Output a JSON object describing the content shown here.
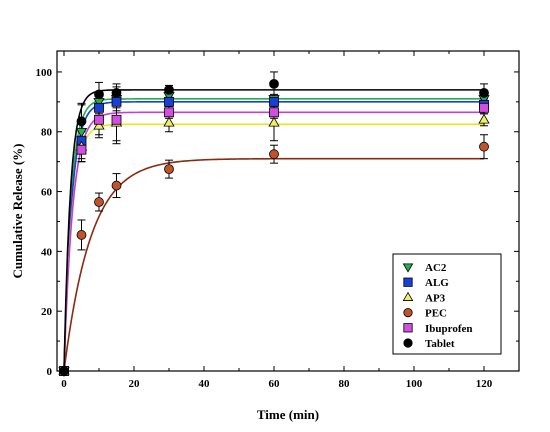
{
  "chart_data": {
    "type": "scatter",
    "xlabel": "Time (min)",
    "ylabel": "Cumulative Release (%)",
    "xlim": [
      -2,
      130
    ],
    "ylim": [
      0,
      107
    ],
    "xticks": [
      0,
      20,
      40,
      60,
      80,
      100,
      120
    ],
    "yticks": [
      0,
      20,
      40,
      60,
      80,
      100
    ],
    "grid": false,
    "legend_position": "bottom-right",
    "fitted_curves": true,
    "series": [
      {
        "name": "AC2",
        "marker": "triangle-down",
        "color": "#22b04c",
        "line_color": "#22b04c",
        "plateau": 91,
        "rate": 0.5,
        "points": [
          {
            "x": 0,
            "y": 0,
            "err": 0
          },
          {
            "x": 5,
            "y": 80,
            "err": 9
          },
          {
            "x": 10,
            "y": 90,
            "err": 3
          },
          {
            "x": 15,
            "y": 91,
            "err": 4
          },
          {
            "x": 30,
            "y": 92,
            "err": 1.5
          },
          {
            "x": 60,
            "y": 91,
            "err": 1.5
          },
          {
            "x": 120,
            "y": 91,
            "err": 1.5
          }
        ]
      },
      {
        "name": "ALG",
        "marker": "square",
        "color": "#1a3fd6",
        "line_color": "#1a3fd6",
        "plateau": 90,
        "rate": 0.45,
        "points": [
          {
            "x": 0,
            "y": 0,
            "err": 0
          },
          {
            "x": 5,
            "y": 77,
            "err": 7
          },
          {
            "x": 10,
            "y": 88,
            "err": 3
          },
          {
            "x": 15,
            "y": 90,
            "err": 2
          },
          {
            "x": 30,
            "y": 90,
            "err": 1.5
          },
          {
            "x": 60,
            "y": 90,
            "err": 2
          },
          {
            "x": 120,
            "y": 89,
            "err": 2
          }
        ]
      },
      {
        "name": "AP3",
        "marker": "triangle-up",
        "color": "#f0f060",
        "line_color": "#e6e620",
        "plateau": 82.5,
        "rate": 0.45,
        "points": [
          {
            "x": 0,
            "y": 0,
            "err": 0
          },
          {
            "x": 5,
            "y": 75,
            "err": 5
          },
          {
            "x": 10,
            "y": 82,
            "err": 4
          },
          {
            "x": 15,
            "y": 83,
            "err": 6
          },
          {
            "x": 30,
            "y": 83,
            "err": 3
          },
          {
            "x": 60,
            "y": 83,
            "err": 6
          },
          {
            "x": 120,
            "y": 84,
            "err": 2
          }
        ]
      },
      {
        "name": "PEC",
        "marker": "circle",
        "color": "#c0532a",
        "line_color": "#8b2a10",
        "plateau": 71,
        "rate": 0.13,
        "points": [
          {
            "x": 0,
            "y": 0,
            "err": 0
          },
          {
            "x": 5,
            "y": 45.5,
            "err": 5
          },
          {
            "x": 10,
            "y": 56.5,
            "err": 3
          },
          {
            "x": 15,
            "y": 62,
            "err": 4
          },
          {
            "x": 30,
            "y": 67.5,
            "err": 3
          },
          {
            "x": 60,
            "y": 72.5,
            "err": 3
          },
          {
            "x": 120,
            "y": 75,
            "err": 4
          }
        ]
      },
      {
        "name": "Ibuprofen",
        "marker": "square",
        "color": "#d14fe0",
        "line_color": "#c040d0",
        "plateau": 86.5,
        "rate": 0.4,
        "points": [
          {
            "x": 0,
            "y": 0,
            "err": 0
          },
          {
            "x": 5,
            "y": 74,
            "err": 4
          },
          {
            "x": 10,
            "y": 84,
            "err": 5
          },
          {
            "x": 15,
            "y": 84,
            "err": 8
          },
          {
            "x": 30,
            "y": 86.5,
            "err": 2
          },
          {
            "x": 60,
            "y": 86.5,
            "err": 2
          },
          {
            "x": 120,
            "y": 88,
            "err": 2
          }
        ]
      },
      {
        "name": "Tablet",
        "marker": "circle",
        "color": "#000000",
        "line_color": "#000000",
        "plateau": 94,
        "rate": 0.55,
        "points": [
          {
            "x": 0,
            "y": 0,
            "err": 0
          },
          {
            "x": 5,
            "y": 83.5,
            "err": 6
          },
          {
            "x": 10,
            "y": 92.5,
            "err": 4
          },
          {
            "x": 15,
            "y": 93,
            "err": 3
          },
          {
            "x": 30,
            "y": 94,
            "err": 1.5
          },
          {
            "x": 60,
            "y": 96,
            "err": 4
          },
          {
            "x": 120,
            "y": 93,
            "err": 3
          }
        ]
      }
    ]
  }
}
